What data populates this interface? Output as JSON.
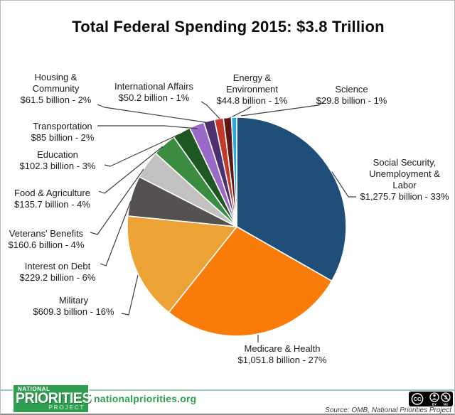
{
  "chart_data": {
    "type": "pie",
    "title": "Total Federal Spending 2015: $3.8 Trillion",
    "unit": "billions of USD",
    "total_label": "$3.8 Trillion",
    "legend_position": "around-pie-with-leader-lines",
    "slices": [
      {
        "key": "social-security",
        "label": "Social Security,\nUnemployment &\nLabor",
        "value_label": "$1,275.7 billion - 33%",
        "billions": 1275.7,
        "percent": 33,
        "color": "#1f4e79"
      },
      {
        "key": "medicare-health",
        "label": "Medicare & Health",
        "value_label": "$1,051.8 billion - 27%",
        "billions": 1051.8,
        "percent": 27,
        "color": "#f97c0b"
      },
      {
        "key": "military",
        "label": "Military",
        "value_label": "$609.3 billion - 16%",
        "billions": 609.3,
        "percent": 16,
        "color": "#eda235"
      },
      {
        "key": "interest-on-debt",
        "label": "Interest on Debt",
        "value_label": "$229.2 billion - 6%",
        "billions": 229.2,
        "percent": 6,
        "color": "#545150"
      },
      {
        "key": "veterans-benefits",
        "label": "Veterans' Benefits",
        "value_label": "$160.6 billion - 4%",
        "billions": 160.6,
        "percent": 4,
        "color": "#c2c1bf"
      },
      {
        "key": "food-agriculture",
        "label": "Food & Agriculture",
        "value_label": "$135.7 billion - 4%",
        "billions": 135.7,
        "percent": 4,
        "color": "#3a8c40"
      },
      {
        "key": "education",
        "label": "Education",
        "value_label": "$102.3 billion - 3%",
        "billions": 102.3,
        "percent": 3,
        "color": "#1f5723"
      },
      {
        "key": "transportation",
        "label": "Transportation",
        "value_label": "$85 billion - 2%",
        "billions": 85,
        "percent": 2,
        "color": "#9a6ac8"
      },
      {
        "key": "housing-community",
        "label": "Housing &\nCommunity",
        "value_label": "$61.5 billion - 2%",
        "billions": 61.5,
        "percent": 2,
        "color": "#4c3072"
      },
      {
        "key": "international-affairs",
        "label": "International Affairs",
        "value_label": "$50.2 billion - 1%",
        "billions": 50.2,
        "percent": 1,
        "color": "#c0392b"
      },
      {
        "key": "energy-environment",
        "label": "Energy &\nEnvironment",
        "value_label": "$44.8 billion - 1%",
        "billions": 44.8,
        "percent": 1,
        "color": "#5e1515"
      },
      {
        "key": "science",
        "label": "Science",
        "value_label": "$29.8 billion - 1%",
        "billions": 29.8,
        "percent": 1,
        "color": "#2fa9dc"
      }
    ]
  },
  "footer": {
    "logo": {
      "line1": "NATIONAL",
      "line2": "PRIORITIES",
      "line3": "PROJECT",
      "color": "#2f9e4f"
    },
    "website": "nationalpriorities.org",
    "source": "Source: OMB, National Priorities Project",
    "license": {
      "name": "CC BY-NC",
      "cc": "CC",
      "by": "BY",
      "nc": "NC",
      "dollar": "$"
    }
  }
}
